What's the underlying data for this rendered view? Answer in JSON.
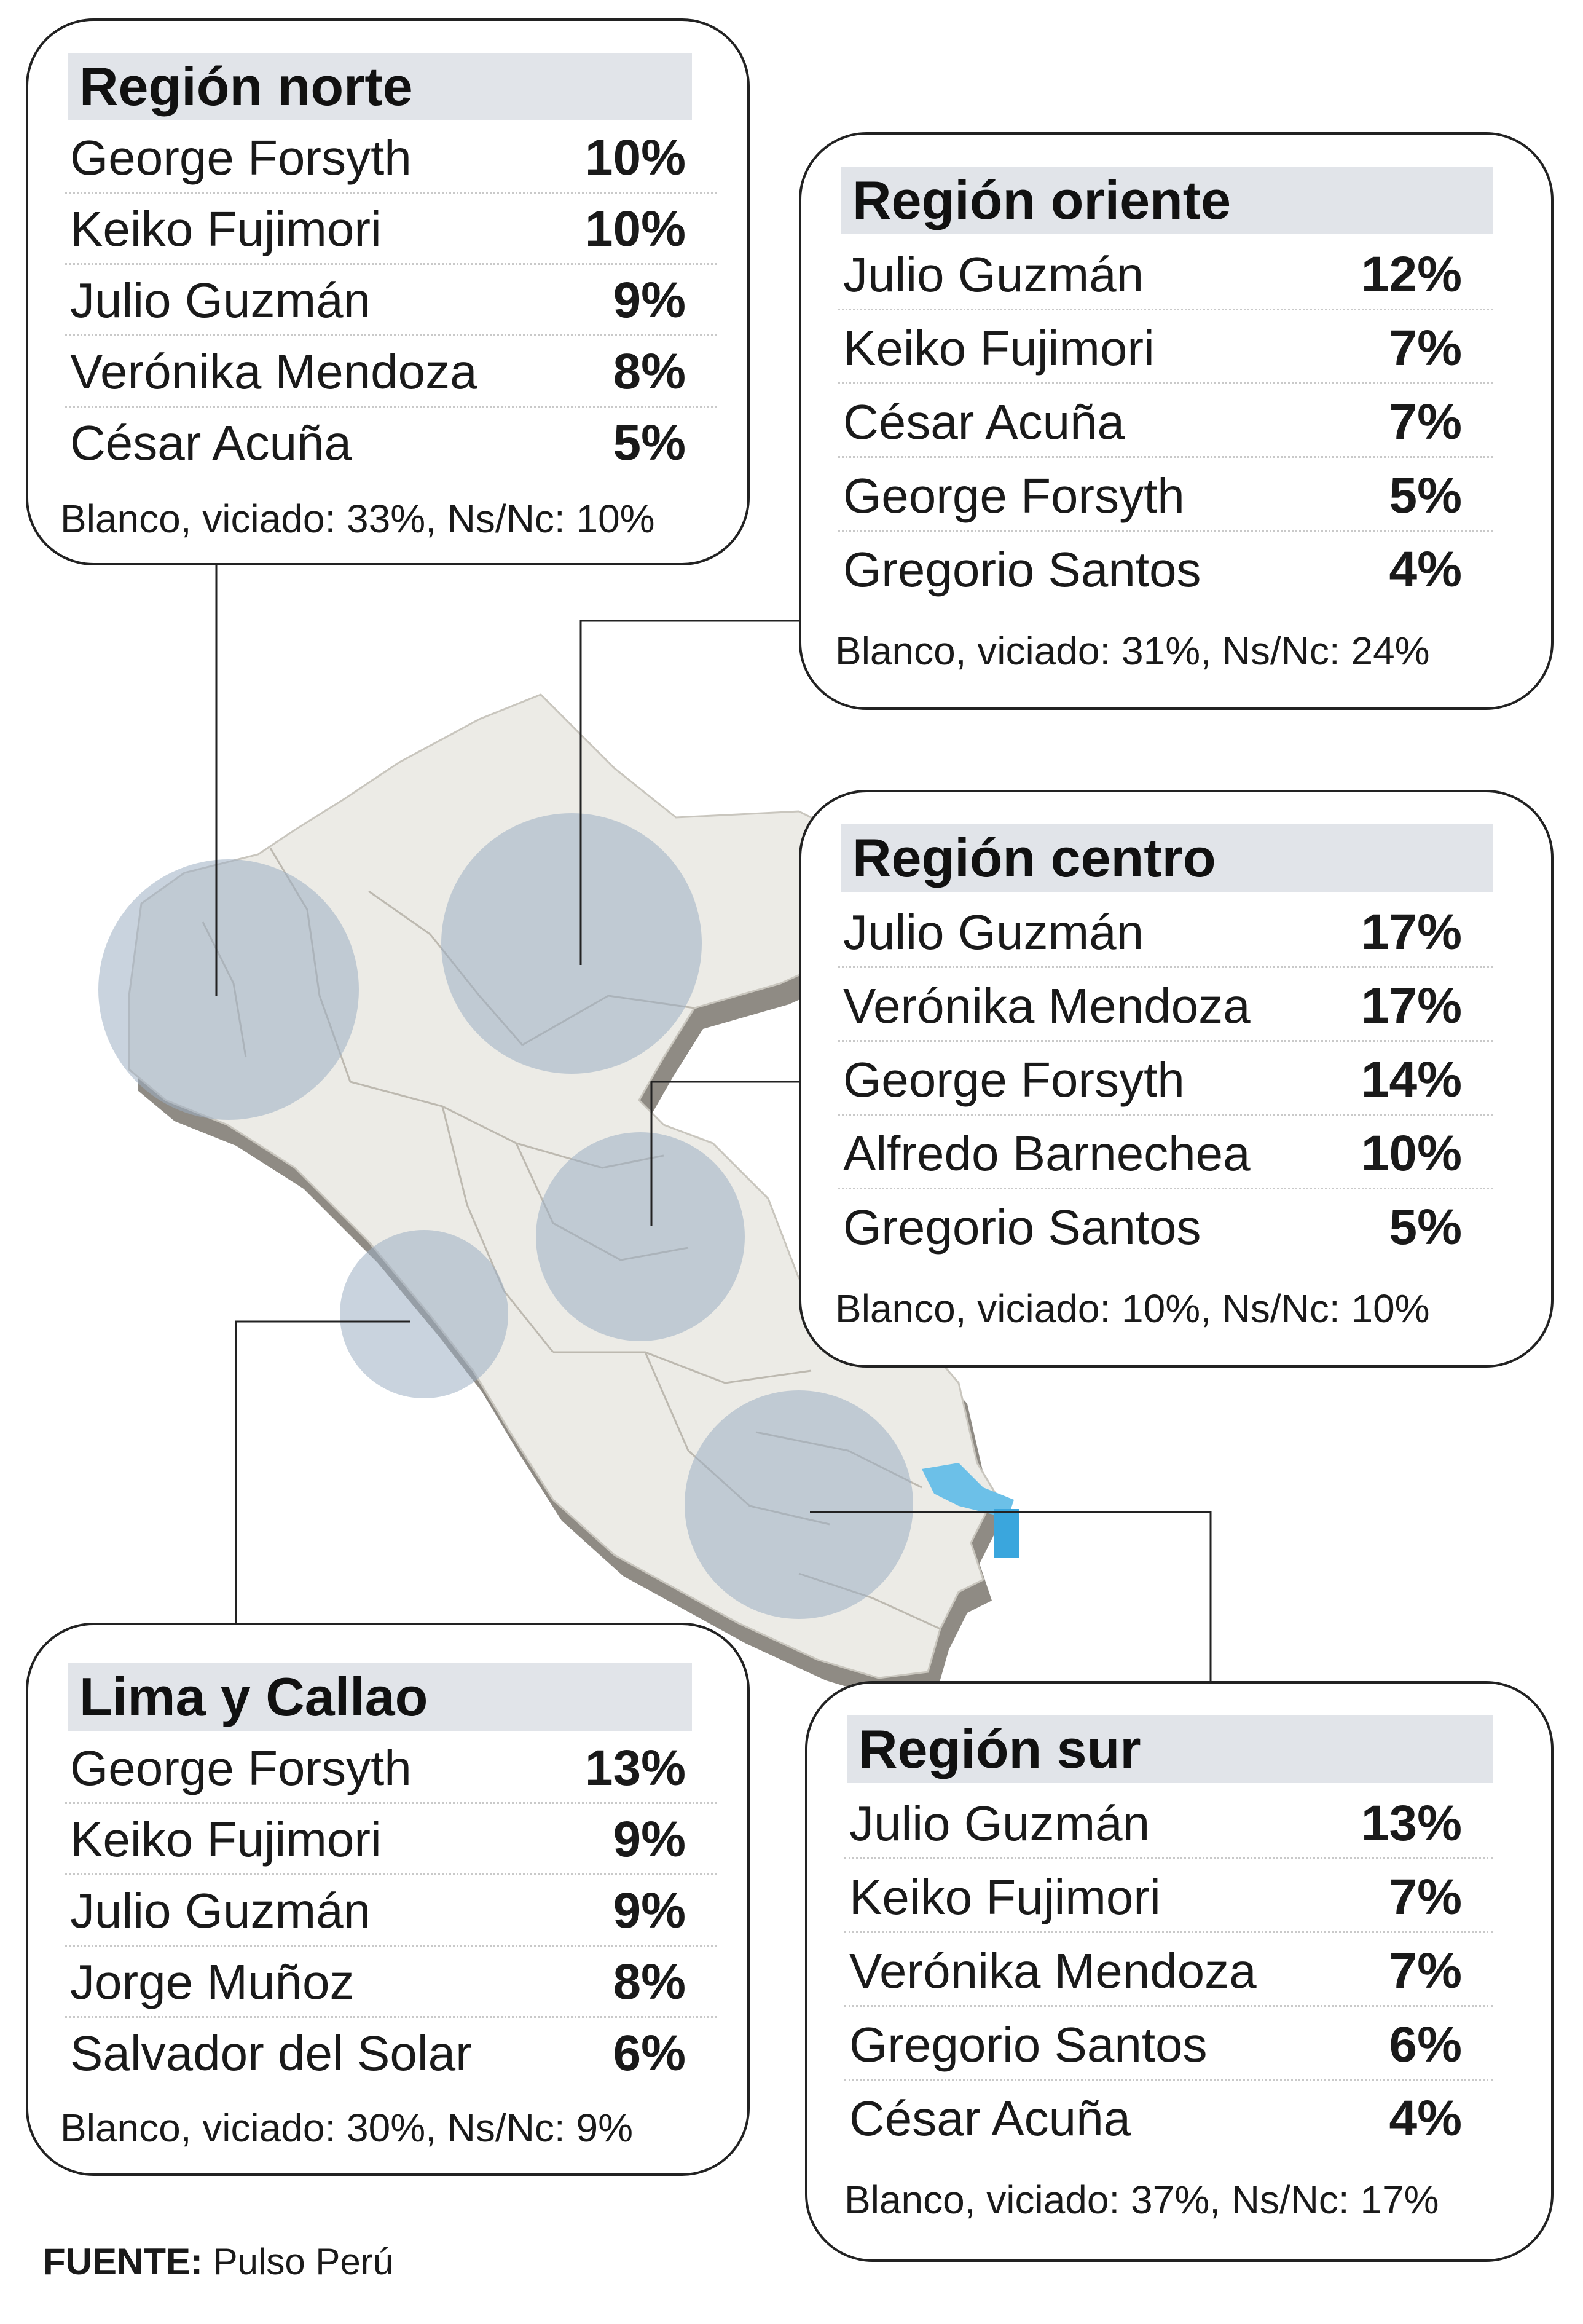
{
  "colors": {
    "map_land": "#ecebe6",
    "map_edge": "#8f8b84",
    "circle": "#9dafc2",
    "lake": "#6cc0e8",
    "title_bg": "#e1e4e9"
  },
  "regions": [
    {
      "title": "Región norte",
      "rows": [
        {
          "name": "George Forsyth",
          "pct": "10%"
        },
        {
          "name": "Keiko Fujimori",
          "pct": "10%"
        },
        {
          "name": "Julio Guzmán",
          "pct": "9%"
        },
        {
          "name": "Verónika Mendoza",
          "pct": "8%"
        },
        {
          "name": "César Acuña",
          "pct": "5%"
        }
      ],
      "note": "Blanco, viciado: 33%, Ns/Nc: 10%"
    },
    {
      "title": "Región oriente",
      "rows": [
        {
          "name": "Julio Guzmán",
          "pct": "12%"
        },
        {
          "name": "Keiko Fujimori",
          "pct": "7%"
        },
        {
          "name": "César Acuña",
          "pct": "7%"
        },
        {
          "name": "George Forsyth",
          "pct": "5%"
        },
        {
          "name": "Gregorio Santos",
          "pct": "4%"
        }
      ],
      "note": "Blanco, viciado: 31%, Ns/Nc: 24%"
    },
    {
      "title": "Región centro",
      "rows": [
        {
          "name": "Julio Guzmán",
          "pct": "17%"
        },
        {
          "name": "Verónika Mendoza",
          "pct": "17%"
        },
        {
          "name": "George Forsyth",
          "pct": "14%"
        },
        {
          "name": "Alfredo Barnechea",
          "pct": "10%"
        },
        {
          "name": "Gregorio Santos",
          "pct": "5%"
        }
      ],
      "note": "Blanco, viciado: 10%, Ns/Nc: 10%"
    },
    {
      "title": "Lima y Callao",
      "rows": [
        {
          "name": "George Forsyth",
          "pct": "13%"
        },
        {
          "name": "Keiko Fujimori",
          "pct": "9%"
        },
        {
          "name": "Julio Guzmán",
          "pct": "9%"
        },
        {
          "name": "Jorge Muñoz",
          "pct": "8%"
        },
        {
          "name": "Salvador del Solar",
          "pct": "6%"
        }
      ],
      "note": "Blanco, viciado: 30%, Ns/Nc: 9%"
    },
    {
      "title": "Región sur",
      "rows": [
        {
          "name": "Julio Guzmán",
          "pct": "13%"
        },
        {
          "name": "Keiko Fujimori",
          "pct": "7%"
        },
        {
          "name": "Verónika Mendoza",
          "pct": "7%"
        },
        {
          "name": "Gregorio Santos",
          "pct": "6%"
        },
        {
          "name": "César Acuña",
          "pct": "4%"
        }
      ],
      "note": "Blanco, viciado: 37%, Ns/Nc: 17%"
    }
  ],
  "source": {
    "label": "FUENTE:",
    "text": "Pulso Perú"
  }
}
